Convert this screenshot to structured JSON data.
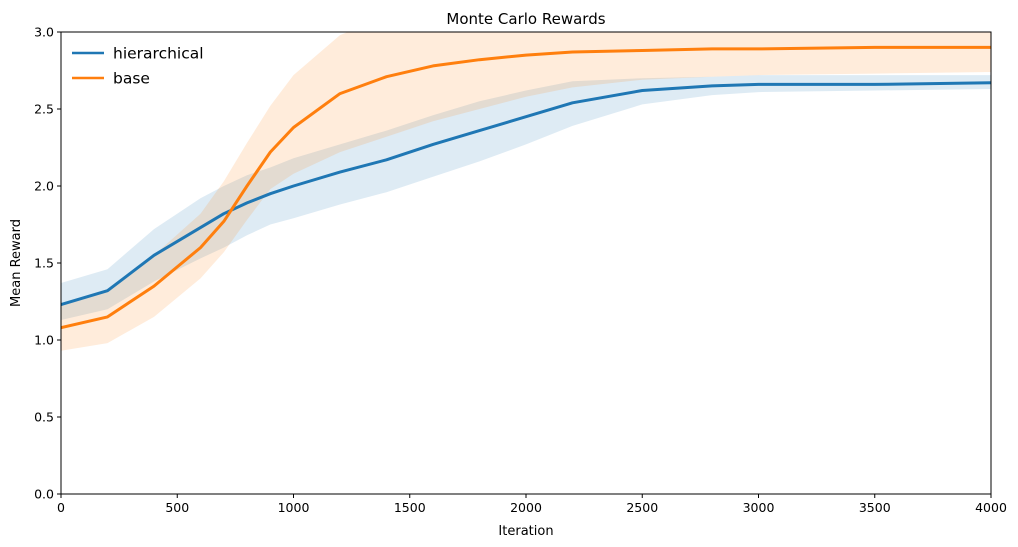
{
  "chart_data": {
    "type": "line",
    "title": "Monte Carlo Rewards",
    "xlabel": "Iteration",
    "ylabel": "Mean Reward",
    "xlim": [
      0,
      4000
    ],
    "ylim": [
      0.0,
      3.0
    ],
    "xticks": [
      0,
      500,
      1000,
      1500,
      2000,
      2500,
      3000,
      3500,
      4000
    ],
    "xtick_labels": [
      "0",
      "500",
      "1000",
      "1500",
      "2000",
      "2500",
      "3000",
      "3500",
      "4000"
    ],
    "yticks": [
      0.0,
      0.5,
      1.0,
      1.5,
      2.0,
      2.5,
      3.0
    ],
    "ytick_labels": [
      "0.0",
      "0.5",
      "1.0",
      "1.5",
      "2.0",
      "2.5",
      "3.0"
    ],
    "grid": false,
    "legend_position": "top-left",
    "x": [
      0,
      200,
      400,
      600,
      700,
      800,
      900,
      1000,
      1200,
      1400,
      1600,
      1800,
      2000,
      2200,
      2500,
      2800,
      3000,
      3500,
      4000
    ],
    "series": [
      {
        "name": "hierarchical",
        "color": "#1f77b4",
        "values": [
          1.23,
          1.32,
          1.55,
          1.73,
          1.82,
          1.89,
          1.95,
          2.0,
          2.09,
          2.17,
          2.27,
          2.36,
          2.45,
          2.54,
          2.62,
          2.65,
          2.66,
          2.66,
          2.67
        ],
        "lower": [
          1.13,
          1.2,
          1.38,
          1.53,
          1.6,
          1.68,
          1.75,
          1.79,
          1.88,
          1.96,
          2.06,
          2.16,
          2.27,
          2.39,
          2.53,
          2.59,
          2.61,
          2.62,
          2.63
        ],
        "upper": [
          1.37,
          1.46,
          1.72,
          1.92,
          2.0,
          2.07,
          2.12,
          2.18,
          2.27,
          2.36,
          2.46,
          2.55,
          2.62,
          2.68,
          2.7,
          2.71,
          2.72,
          2.72,
          2.72
        ]
      },
      {
        "name": "base",
        "color": "#ff7f0e",
        "values": [
          1.08,
          1.15,
          1.35,
          1.6,
          1.77,
          2.0,
          2.22,
          2.38,
          2.6,
          2.71,
          2.78,
          2.82,
          2.85,
          2.87,
          2.88,
          2.89,
          2.89,
          2.9,
          2.9
        ],
        "lower": [
          0.93,
          0.98,
          1.15,
          1.4,
          1.57,
          1.78,
          1.98,
          2.08,
          2.22,
          2.32,
          2.42,
          2.5,
          2.58,
          2.64,
          2.69,
          2.71,
          2.72,
          2.73,
          2.74
        ],
        "upper": [
          1.23,
          1.32,
          1.55,
          1.82,
          2.03,
          2.28,
          2.52,
          2.72,
          2.98,
          3.1,
          3.14,
          3.12,
          3.1,
          3.08,
          3.06,
          3.05,
          3.05,
          3.05,
          3.05
        ]
      }
    ]
  }
}
